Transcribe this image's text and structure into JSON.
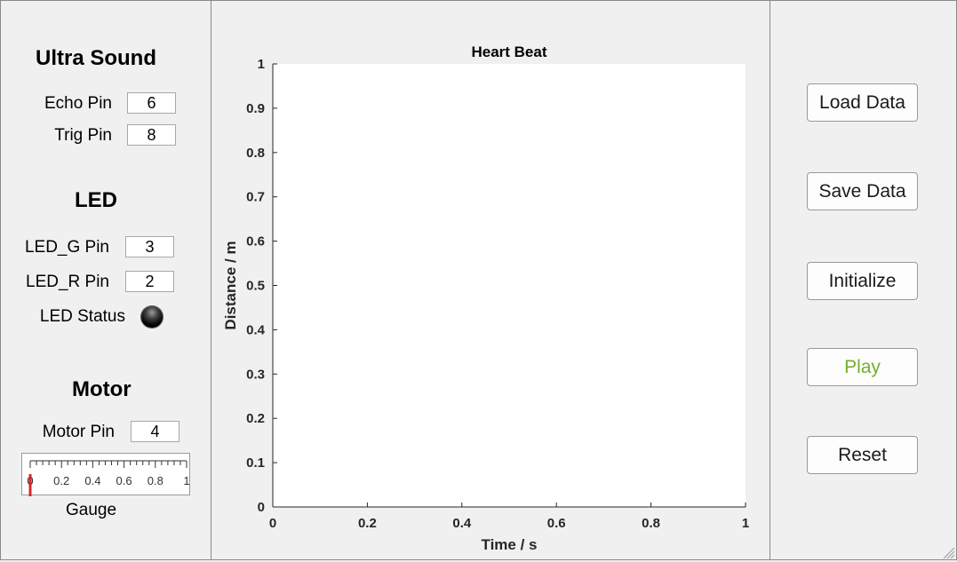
{
  "ultrasound": {
    "title": "Ultra Sound",
    "echo_label": "Echo Pin",
    "echo_value": "6",
    "trig_label": "Trig Pin",
    "trig_value": "8"
  },
  "led": {
    "title": "LED",
    "g_label": "LED_G Pin",
    "g_value": "3",
    "r_label": "LED_R Pin",
    "r_value": "2",
    "status_label": "LED Status",
    "lamp_color": "#000000"
  },
  "motor": {
    "title": "Motor",
    "pin_label": "Motor Pin",
    "pin_value": "4",
    "gauge_label": "Gauge",
    "gauge_ticks": [
      "0",
      "0.2",
      "0.4",
      "0.6",
      "0.8",
      "1"
    ],
    "gauge_value": 0,
    "needle_color": "#d62728"
  },
  "buttons": {
    "load": "Load Data",
    "save": "Save Data",
    "initialize": "Initialize",
    "play": "Play",
    "reset": "Reset",
    "play_color": "#77ac30"
  },
  "chart_data": {
    "type": "line",
    "title": "Heart Beat",
    "xlabel": "Time / s",
    "ylabel": "Distance / m",
    "xlim": [
      0,
      1
    ],
    "ylim": [
      0,
      1
    ],
    "xticks": [
      "0",
      "0.2",
      "0.4",
      "0.6",
      "0.8",
      "1"
    ],
    "yticks": [
      "0",
      "0.1",
      "0.2",
      "0.3",
      "0.4",
      "0.5",
      "0.6",
      "0.7",
      "0.8",
      "0.9",
      "1"
    ],
    "grid": false,
    "series": []
  }
}
